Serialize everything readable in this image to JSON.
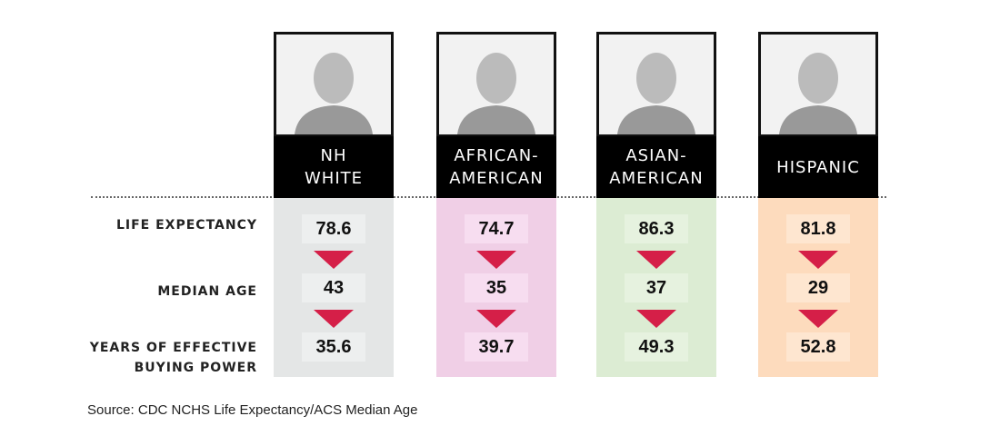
{
  "table": {
    "columns": [
      {
        "header": [
          "NH",
          "WHITE"
        ],
        "values": [
          78.6,
          43,
          35.6
        ]
      },
      {
        "header": [
          "AFRICAN-",
          "AMERICAN"
        ],
        "values": [
          74.7,
          35,
          39.7
        ]
      },
      {
        "header": [
          "ASIAN-",
          "AMERICAN"
        ],
        "values": [
          86.3,
          37,
          49.3
        ]
      },
      {
        "header": [
          "HISPANIC"
        ],
        "values": [
          81.8,
          29,
          52.8
        ]
      }
    ],
    "row_labels": [
      [
        "LIFE EXPECTANCY"
      ],
      [
        "MEDIAN AGE"
      ],
      [
        "YEARS OF EFFECTIVE",
        "BUYING POWER"
      ]
    ]
  },
  "source": "Source: CDC NCHS Life Expectancy/ACS Median Age"
}
